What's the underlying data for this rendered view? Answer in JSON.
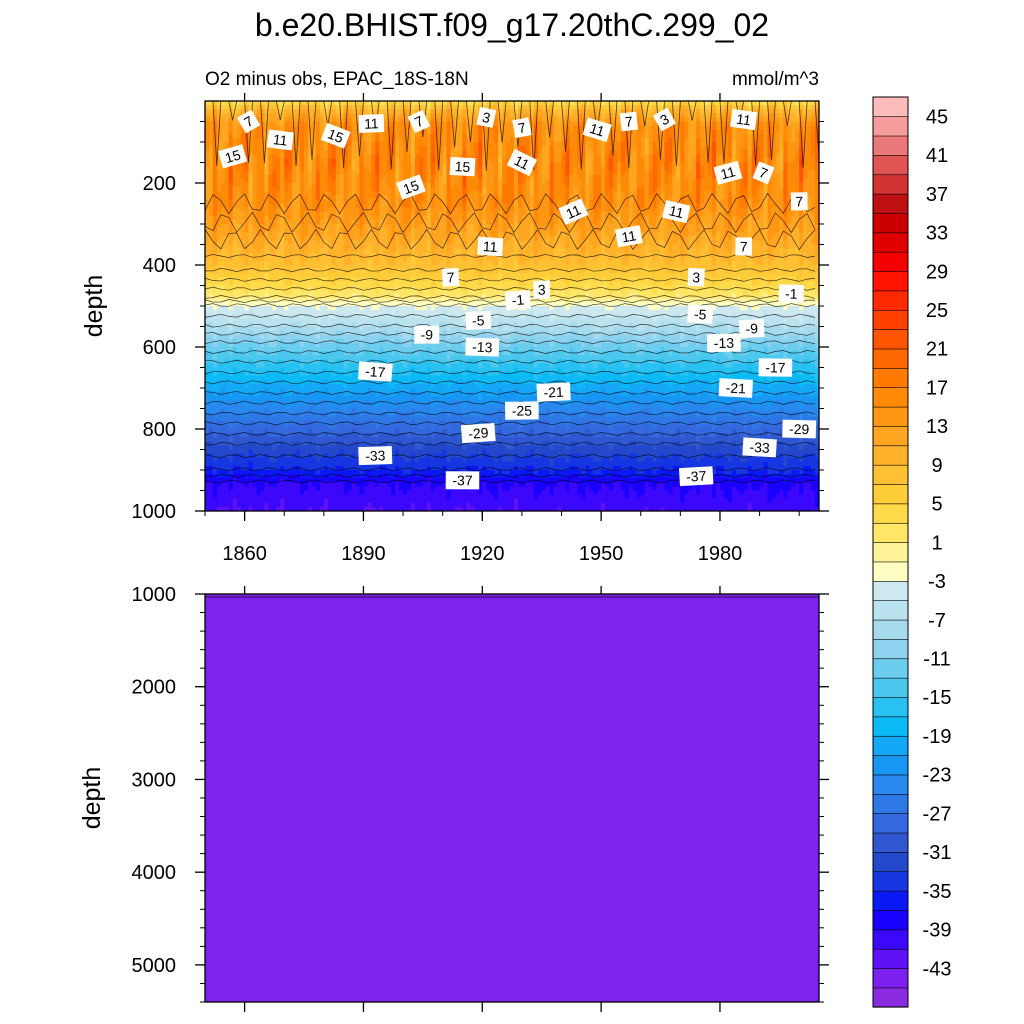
{
  "chart_data": {
    "type": "heatmap",
    "title": "b.e20.BHIST.f09_g17.20thC.299_02",
    "subtitle": "O2 minus obs, EPAC_18S-18N",
    "units": "mmol/m^3",
    "x_tick_labels": [
      "1860",
      "1890",
      "1920",
      "1950",
      "1980"
    ],
    "x_ticks": [
      1860,
      1890,
      1920,
      1950,
      1980
    ],
    "xlim": [
      1850,
      2005
    ],
    "panels": [
      {
        "name": "upper",
        "ylabel": "depth",
        "ylim": [
          1000,
          0
        ],
        "y_ticks": [
          200,
          400,
          600,
          800,
          1000
        ],
        "y_tick_labels": [
          "200",
          "400",
          "600",
          "800",
          "1000"
        ],
        "depth_profile": [
          [
            0,
            3
          ],
          [
            20,
            9
          ],
          [
            60,
            15
          ],
          [
            150,
            16
          ],
          [
            250,
            15
          ],
          [
            320,
            12
          ],
          [
            400,
            8
          ],
          [
            450,
            4
          ],
          [
            480,
            1
          ],
          [
            500,
            -3
          ],
          [
            550,
            -7
          ],
          [
            600,
            -12
          ],
          [
            650,
            -16
          ],
          [
            700,
            -20
          ],
          [
            750,
            -24
          ],
          [
            800,
            -28
          ],
          [
            850,
            -32
          ],
          [
            900,
            -35
          ],
          [
            930,
            -39
          ],
          [
            1000,
            -41
          ]
        ],
        "contour_labels": [
          {
            "text": "7",
            "year": 1861,
            "depth": 50
          },
          {
            "text": "11",
            "year": 1869,
            "depth": 95
          },
          {
            "text": "15",
            "year": 1857,
            "depth": 135
          },
          {
            "text": "15",
            "year": 1883,
            "depth": 85
          },
          {
            "text": "11",
            "year": 1892,
            "depth": 55
          },
          {
            "text": "7",
            "year": 1904,
            "depth": 50
          },
          {
            "text": "3",
            "year": 1921,
            "depth": 40
          },
          {
            "text": "7",
            "year": 1930,
            "depth": 65
          },
          {
            "text": "11",
            "year": 1930,
            "depth": 150
          },
          {
            "text": "15",
            "year": 1915,
            "depth": 160
          },
          {
            "text": "15",
            "year": 1902,
            "depth": 210
          },
          {
            "text": "11",
            "year": 1949,
            "depth": 70
          },
          {
            "text": "7",
            "year": 1957,
            "depth": 50
          },
          {
            "text": "3",
            "year": 1966,
            "depth": 45
          },
          {
            "text": "11",
            "year": 1986,
            "depth": 45
          },
          {
            "text": "11",
            "year": 1982,
            "depth": 175
          },
          {
            "text": "7",
            "year": 1991,
            "depth": 175
          },
          {
            "text": "7",
            "year": 2000,
            "depth": 245
          },
          {
            "text": "11",
            "year": 1943,
            "depth": 270
          },
          {
            "text": "11",
            "year": 1969,
            "depth": 270
          },
          {
            "text": "11",
            "year": 1957,
            "depth": 330
          },
          {
            "text": "11",
            "year": 1922,
            "depth": 355
          },
          {
            "text": "7",
            "year": 1986,
            "depth": 355
          },
          {
            "text": "7",
            "year": 1912,
            "depth": 430
          },
          {
            "text": "3",
            "year": 1974,
            "depth": 430
          },
          {
            "text": "3",
            "year": 1935,
            "depth": 460
          },
          {
            "text": "-1",
            "year": 1929,
            "depth": 485
          },
          {
            "text": "-1",
            "year": 1998,
            "depth": 470
          },
          {
            "text": "-5",
            "year": 1919,
            "depth": 535
          },
          {
            "text": "-5",
            "year": 1975,
            "depth": 520
          },
          {
            "text": "-9",
            "year": 1906,
            "depth": 570
          },
          {
            "text": "-9",
            "year": 1988,
            "depth": 555
          },
          {
            "text": "-13",
            "year": 1920,
            "depth": 600
          },
          {
            "text": "-13",
            "year": 1981,
            "depth": 590
          },
          {
            "text": "-17",
            "year": 1893,
            "depth": 660
          },
          {
            "text": "-17",
            "year": 1994,
            "depth": 650
          },
          {
            "text": "-21",
            "year": 1938,
            "depth": 710
          },
          {
            "text": "-21",
            "year": 1984,
            "depth": 700
          },
          {
            "text": "-25",
            "year": 1930,
            "depth": 755
          },
          {
            "text": "-29",
            "year": 1919,
            "depth": 810
          },
          {
            "text": "-29",
            "year": 2000,
            "depth": 800
          },
          {
            "text": "-33",
            "year": 1893,
            "depth": 865
          },
          {
            "text": "-33",
            "year": 1990,
            "depth": 845
          },
          {
            "text": "-37",
            "year": 1915,
            "depth": 925
          },
          {
            "text": "-37",
            "year": 1974,
            "depth": 915
          }
        ]
      },
      {
        "name": "lower",
        "ylabel": "depth",
        "ylim": [
          1000,
          5400
        ],
        "y_ticks": [
          1000,
          2000,
          3000,
          4000,
          5000
        ],
        "y_tick_labels": [
          "1000",
          "2000",
          "3000",
          "4000",
          "5000"
        ],
        "value": -47,
        "fill_color": "#7e22ee"
      }
    ],
    "colorbar": {
      "levels": [
        -47,
        -45,
        -43,
        -41,
        -39,
        -37,
        -35,
        -33,
        -31,
        -29,
        -27,
        -25,
        -23,
        -21,
        -19,
        -17,
        -15,
        -13,
        -11,
        -9,
        -7,
        -5,
        -3,
        -1,
        1,
        3,
        5,
        7,
        9,
        11,
        13,
        15,
        17,
        19,
        21,
        23,
        25,
        27,
        29,
        31,
        33,
        35,
        37,
        39,
        41,
        43,
        45,
        47
      ],
      "tick_labels": [
        "45",
        "41",
        "37",
        "33",
        "29",
        "25",
        "21",
        "17",
        "13",
        "9",
        "5",
        "1",
        "-3",
        "-7",
        "-11",
        "-15",
        "-19",
        "-23",
        "-27",
        "-31",
        "-35",
        "-39",
        "-43"
      ],
      "colors": [
        "#8a2be2",
        "#7b20ee",
        "#5f12f5",
        "#3c08fb",
        "#1900ff",
        "#0a18f5",
        "#1536e0",
        "#2448cc",
        "#2f58d0",
        "#3468de",
        "#2e78e6",
        "#2888ee",
        "#1896f4",
        "#14a8f6",
        "#0cbaf6",
        "#28c2f2",
        "#4cc8ee",
        "#6ccdee",
        "#8dd2ee",
        "#a6dbee",
        "#bbe2ef",
        "#cee8f0",
        "#ffffc4",
        "#fff39a",
        "#ffe666",
        "#ffdb4a",
        "#ffcd3a",
        "#ffc033",
        "#ffb22a",
        "#ffa51f",
        "#ff9714",
        "#ff8a08",
        "#ff7a00",
        "#ff6800",
        "#ff5400",
        "#ff4000",
        "#ff2a00",
        "#ff1400",
        "#f50000",
        "#e00000",
        "#cc0000",
        "#be1010",
        "#d23434",
        "#e05454",
        "#ea7878",
        "#f59c9c",
        "#fdbcbc"
      ]
    }
  }
}
